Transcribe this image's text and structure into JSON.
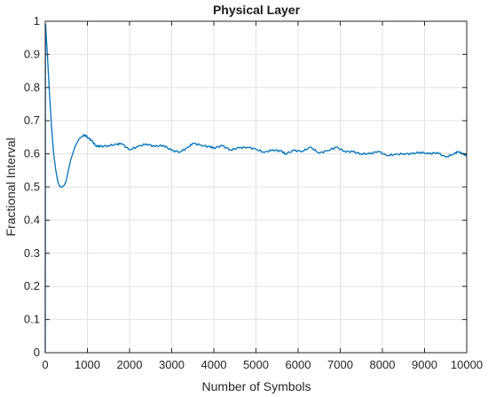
{
  "chart_data": {
    "type": "line",
    "title": "Physical Layer",
    "xlabel": "Number of Symbols",
    "ylabel": "Fractional Interval",
    "xlim": [
      0,
      10000
    ],
    "ylim": [
      0,
      1
    ],
    "grid": true,
    "x_ticks": [
      0,
      1000,
      2000,
      3000,
      4000,
      5000,
      6000,
      7000,
      8000,
      9000,
      10000
    ],
    "y_ticks": [
      0,
      0.1,
      0.2,
      0.3,
      0.4,
      0.5,
      0.6,
      0.7,
      0.8,
      0.9,
      1
    ],
    "x_tick_labels": [
      "0",
      "1000",
      "2000",
      "3000",
      "4000",
      "5000",
      "6000",
      "7000",
      "8000",
      "9000",
      "10000"
    ],
    "y_tick_labels": [
      "0",
      "0.1",
      "0.2",
      "0.3",
      "0.4",
      "0.5",
      "0.6",
      "0.7",
      "0.8",
      "0.9",
      "1"
    ],
    "series": [
      {
        "color": "#0072bd",
        "x": [
          0,
          5,
          10,
          20,
          50,
          100,
          150,
          200,
          250,
          300,
          350,
          400,
          450,
          500,
          550,
          600,
          700,
          800,
          900,
          950,
          1000,
          1100,
          1200,
          1300,
          1500,
          1700,
          1800,
          2000,
          2200,
          2400,
          2600,
          2800,
          3000,
          3200,
          3400,
          3500,
          3700,
          3900,
          4000,
          4200,
          4400,
          4600,
          4800,
          5000,
          5200,
          5400,
          5600,
          5700,
          5900,
          6100,
          6300,
          6500,
          6700,
          6900,
          7100,
          7300,
          7500,
          7700,
          7900,
          8100,
          8300,
          8500,
          8700,
          8900,
          9100,
          9300,
          9500,
          9700,
          9800,
          9900,
          10000
        ],
        "y": [
          0,
          0.97,
          0.99,
          0.96,
          0.9,
          0.78,
          0.68,
          0.6,
          0.55,
          0.515,
          0.5,
          0.5,
          0.505,
          0.52,
          0.55,
          0.58,
          0.62,
          0.645,
          0.655,
          0.656,
          0.65,
          0.64,
          0.625,
          0.622,
          0.625,
          0.628,
          0.632,
          0.612,
          0.622,
          0.63,
          0.622,
          0.626,
          0.61,
          0.606,
          0.62,
          0.632,
          0.626,
          0.621,
          0.618,
          0.624,
          0.612,
          0.618,
          0.62,
          0.614,
          0.604,
          0.612,
          0.608,
          0.6,
          0.61,
          0.608,
          0.62,
          0.602,
          0.61,
          0.62,
          0.608,
          0.606,
          0.6,
          0.6,
          0.608,
          0.595,
          0.598,
          0.6,
          0.6,
          0.605,
          0.6,
          0.604,
          0.59,
          0.6,
          0.607,
          0.6,
          0.595
        ]
      }
    ]
  }
}
